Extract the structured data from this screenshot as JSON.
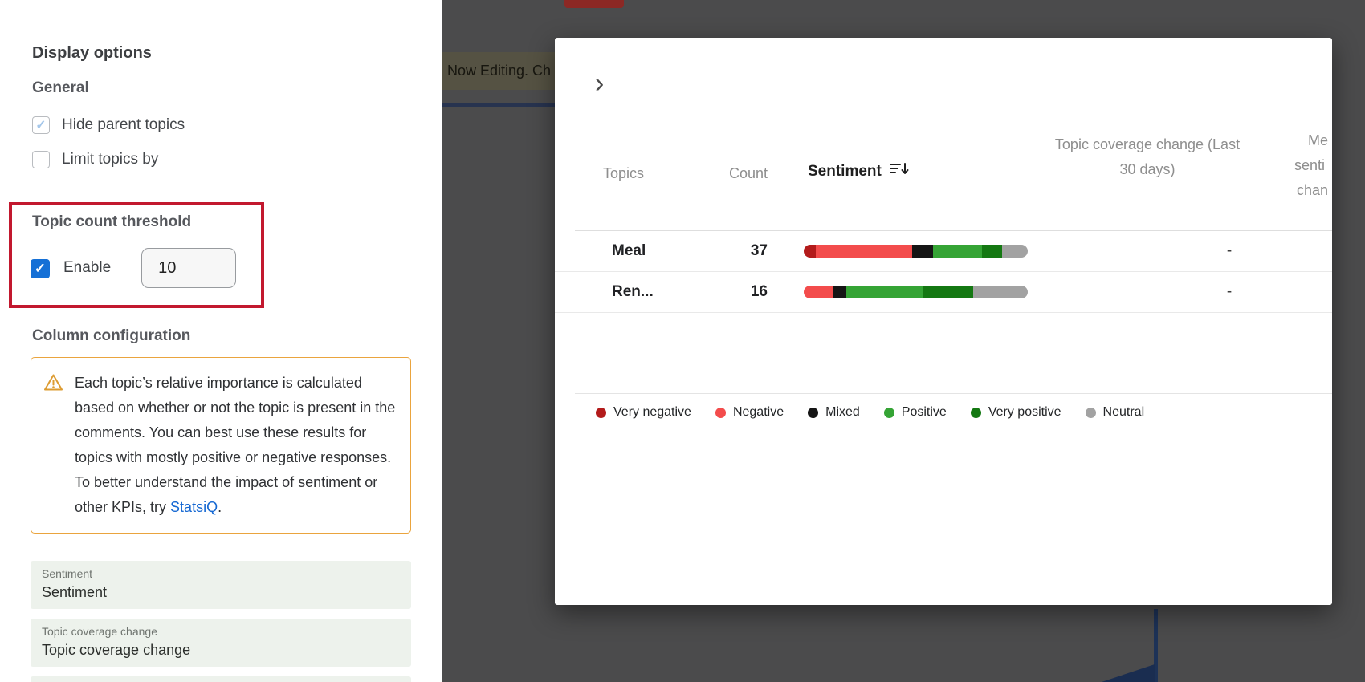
{
  "panel": {
    "title": "Display options",
    "general": {
      "heading": "General",
      "options": [
        {
          "label": "Hide parent topics",
          "checked": true
        },
        {
          "label": "Limit topics by",
          "checked": false
        }
      ]
    },
    "threshold": {
      "heading": "Topic count threshold",
      "checkbox_label": "Enable",
      "input_value": "10"
    },
    "column_configuration": {
      "heading": "Column configuration",
      "notice": {
        "text": "Each topic’s relative importance is calculated based on whether or not the topic is present in the comments. You can best use these results for topics with mostly positive or negative responses. To better understand the impact of sentiment or other KPIs, try ",
        "link_label": "StatsiQ",
        "suffix": "."
      },
      "fields": [
        {
          "label": "Sentiment",
          "value": "Sentiment"
        },
        {
          "label": "Topic coverage change",
          "value": "Topic coverage change"
        }
      ]
    }
  },
  "background": {
    "banner_text": "Now Editing. Ch"
  },
  "modal": {
    "expand_icon": "›",
    "table": {
      "headers": {
        "topics": "Topics",
        "count": "Count",
        "sentiment": "Sentiment",
        "coverage": "Topic coverage change (Last 30 days)",
        "truncated_lines": [
          "Me",
          "senti",
          "chan"
        ]
      },
      "rows": [
        {
          "topic": "Meal",
          "count": "37",
          "coverage_change": "-",
          "sentiment_segments": [
            {
              "key": "very_negative",
              "pct": 5.4
            },
            {
              "key": "negative",
              "pct": 43.0
            },
            {
              "key": "mixed",
              "pct": 9.3
            },
            {
              "key": "positive",
              "pct": 22.0
            },
            {
              "key": "very_positive",
              "pct": 9.0
            },
            {
              "key": "neutral",
              "pct": 11.3
            }
          ]
        },
        {
          "topic": "Ren...",
          "count": "16",
          "coverage_change": "-",
          "sentiment_segments": [
            {
              "key": "negative",
              "pct": 13.2
            },
            {
              "key": "mixed",
              "pct": 5.8
            },
            {
              "key": "positive",
              "pct": 34.1
            },
            {
              "key": "very_positive",
              "pct": 22.5
            },
            {
              "key": "neutral",
              "pct": 24.4
            }
          ]
        }
      ]
    },
    "sentiment_colors": {
      "very_negative": "#b31b1b",
      "negative": "#f34c4c",
      "mixed": "#151515",
      "positive": "#35a435",
      "very_positive": "#147812",
      "neutral": "#a2a2a2"
    },
    "legend": [
      {
        "key": "very_negative",
        "label": "Very negative"
      },
      {
        "key": "negative",
        "label": "Negative"
      },
      {
        "key": "mixed",
        "label": "Mixed"
      },
      {
        "key": "positive",
        "label": "Positive"
      },
      {
        "key": "very_positive",
        "label": "Very positive"
      },
      {
        "key": "neutral",
        "label": "Neutral"
      }
    ]
  },
  "colors": {
    "accent_blue": "#1570d6",
    "annotation_red": "#c2182e",
    "warning_orange": "#eaa43e",
    "link_blue": "#1467d2"
  }
}
